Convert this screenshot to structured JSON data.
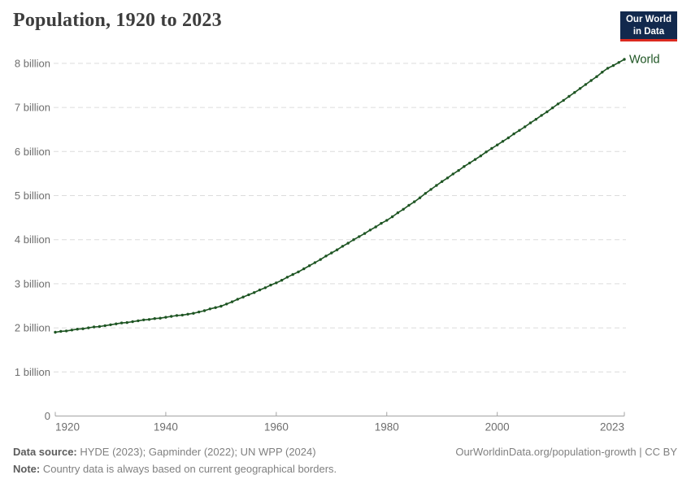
{
  "header": {
    "title": "Population, 1920 to 2023",
    "logo": {
      "line1": "Our World",
      "line2": "in Data"
    }
  },
  "footer": {
    "source_label": "Data source:",
    "source_text": " HYDE (2023); Gapminder (2022); UN WPP (2024)",
    "note_label": "Note:",
    "note_text": " Country data is always based on current geographical borders.",
    "credit": "OurWorldinData.org/population-growth | CC BY"
  },
  "colors": {
    "series_green": "#1e5523",
    "grid": "#dcdcdc",
    "axis": "#a3a3a3",
    "tick_label": "#6e6e6e",
    "title_text": "#3d3d3d",
    "logo_navy": "#12294d",
    "logo_red": "#dc2a1f"
  },
  "chart_data": {
    "type": "line",
    "title": "Population, 1920 to 2023",
    "xlabel": "",
    "ylabel": "",
    "unit": "billion people",
    "x_start": 1920,
    "x_interval": 1,
    "xlim": [
      1920,
      2023
    ],
    "ylim": [
      0,
      8.6
    ],
    "x_ticks": [
      1920,
      1940,
      1960,
      1980,
      2000,
      2023
    ],
    "y_ticks": [
      0,
      1,
      2,
      3,
      4,
      5,
      6,
      7,
      8
    ],
    "y_tick_labels": [
      "0",
      "1 billion",
      "2 billion",
      "3 billion",
      "4 billion",
      "5 billion",
      "6 billion",
      "7 billion",
      "8 billion"
    ],
    "grid": "horizontal dashed",
    "legend": "end-of-line label",
    "series": [
      {
        "name": "World",
        "color": "#1e5523",
        "values": [
          1.9,
          1.92,
          1.93,
          1.95,
          1.97,
          1.98,
          2.0,
          2.02,
          2.03,
          2.05,
          2.07,
          2.09,
          2.11,
          2.12,
          2.14,
          2.16,
          2.18,
          2.19,
          2.21,
          2.22,
          2.24,
          2.26,
          2.28,
          2.29,
          2.31,
          2.33,
          2.36,
          2.39,
          2.43,
          2.46,
          2.49,
          2.54,
          2.59,
          2.65,
          2.7,
          2.75,
          2.8,
          2.86,
          2.91,
          2.97,
          3.02,
          3.08,
          3.15,
          3.21,
          3.27,
          3.34,
          3.41,
          3.48,
          3.55,
          3.63,
          3.7,
          3.77,
          3.85,
          3.92,
          4.0,
          4.07,
          4.14,
          4.22,
          4.29,
          4.37,
          4.44,
          4.52,
          4.61,
          4.69,
          4.78,
          4.86,
          4.95,
          5.05,
          5.14,
          5.23,
          5.32,
          5.4,
          5.49,
          5.57,
          5.66,
          5.74,
          5.82,
          5.9,
          5.99,
          6.07,
          6.15,
          6.23,
          6.31,
          6.4,
          6.48,
          6.56,
          6.65,
          6.73,
          6.82,
          6.9,
          6.99,
          7.08,
          7.16,
          7.25,
          7.34,
          7.43,
          7.52,
          7.61,
          7.7,
          7.8,
          7.89,
          7.95,
          8.02,
          8.09
        ]
      }
    ]
  }
}
